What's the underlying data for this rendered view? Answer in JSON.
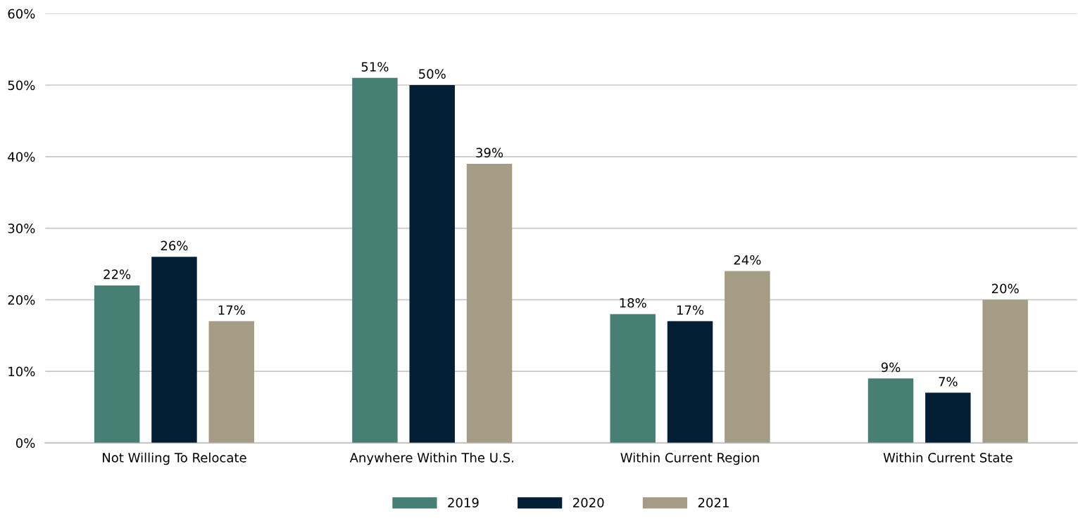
{
  "chart_data": {
    "type": "bar",
    "categories": [
      "Not Willing To Relocate",
      "Anywhere Within The U.S.",
      "Within Current Region",
      "Within Current State"
    ],
    "series": [
      {
        "name": "2019",
        "color": "#477f75",
        "values": [
          22,
          51,
          18,
          9
        ],
        "value_labels": [
          "22%",
          "51%",
          "18%",
          "9%"
        ]
      },
      {
        "name": "2020",
        "color": "#021f35",
        "values": [
          26,
          50,
          17,
          7
        ],
        "value_labels": [
          "26%",
          "50%",
          "17%",
          "7%"
        ]
      },
      {
        "name": "2021",
        "color": "#a59c86",
        "values": [
          17,
          39,
          24,
          20
        ],
        "value_labels": [
          "17%",
          "39%",
          "24%",
          "20%"
        ]
      }
    ],
    "ylim": [
      0,
      60
    ],
    "yticks": [
      {
        "value": 0,
        "label": "0%"
      },
      {
        "value": 10,
        "label": "10%"
      },
      {
        "value": 20,
        "label": "20%"
      },
      {
        "value": 30,
        "label": "30%"
      },
      {
        "value": 40,
        "label": "40%"
      },
      {
        "value": 50,
        "label": "50%"
      },
      {
        "value": 60,
        "label": "60%"
      }
    ],
    "grid": "y",
    "legend": "bottom"
  }
}
